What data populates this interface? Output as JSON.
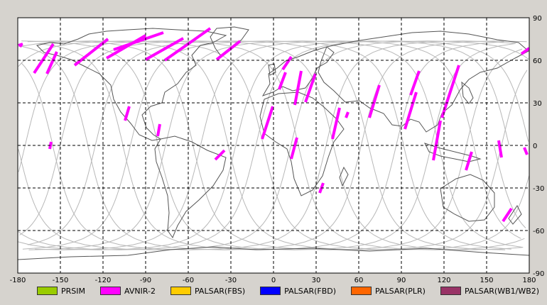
{
  "map": {
    "lon_ticks": [
      "-180",
      "-150",
      "-120",
      "-90",
      "-60",
      "-30",
      "0",
      "30",
      "60",
      "90",
      "120",
      "150",
      "180"
    ],
    "lat_ticks": [
      "90",
      "60",
      "30",
      "0",
      "-30",
      "-60",
      "-90"
    ],
    "lon_range": [
      -180,
      180
    ],
    "lat_range": [
      -90,
      90
    ],
    "grid": "dashed",
    "colors": {
      "background": "#d6d3ce",
      "map_background": "#ffffff",
      "coastline": "#555555",
      "orbit_track": "#b8b8b8",
      "observation": "#ff00ff"
    }
  },
  "legend": [
    {
      "label": "PRSIM",
      "color": "#99cc00"
    },
    {
      "label": "AVNIR-2",
      "color": "#ff00ff"
    },
    {
      "label": "PALSAR(FBS)",
      "color": "#ffcc00"
    },
    {
      "label": "PALSAR(FBD)",
      "color": "#0000ff"
    },
    {
      "label": "PALSAR(PLR)",
      "color": "#ff6600"
    },
    {
      "label": "PALSAR(WB1/WB2)",
      "color": "#993366"
    }
  ]
}
